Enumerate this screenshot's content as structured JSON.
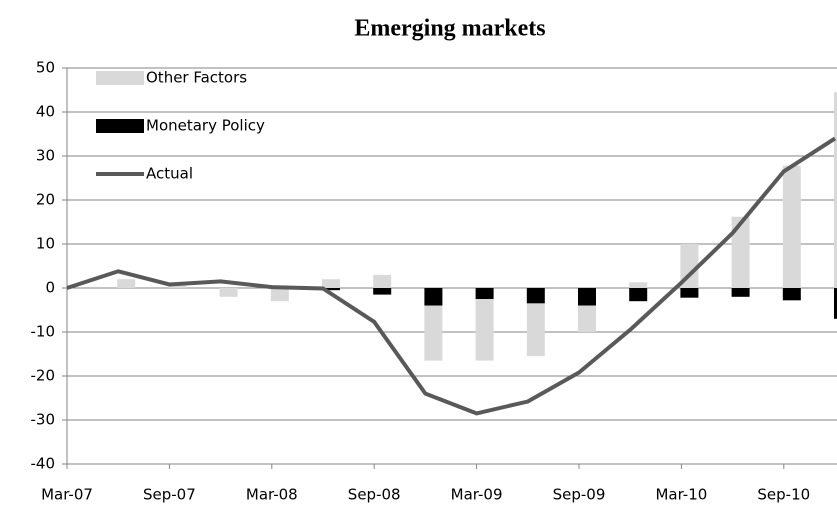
{
  "chart_data": {
    "type": "bar",
    "title": "Emerging markets",
    "categories": [
      "Mar-07",
      null,
      "Sep-07",
      null,
      "Mar-08",
      null,
      "Sep-08",
      null,
      "Mar-09",
      null,
      "Sep-09",
      null,
      "Mar-10",
      null,
      "Sep-10",
      null
    ],
    "series": [
      {
        "name": "Other Factors",
        "color": "#d9d9d9",
        "values": [
          0,
          2,
          0.5,
          -2,
          -3,
          2,
          3,
          -12.5,
          -14,
          -12,
          -6,
          1.3,
          10,
          16.2,
          27.8,
          44.5
        ]
      },
      {
        "name": "Monetary Policy",
        "color": "#000000",
        "values": [
          0,
          0,
          0,
          0,
          0,
          -0.5,
          -1.5,
          -4,
          -2.5,
          -3.5,
          -4,
          -3,
          -2.2,
          -2,
          -2.8,
          -7
        ]
      },
      {
        "name": "Actual",
        "color": "#595959",
        "type": "line",
        "values": [
          0,
          3.8,
          0.8,
          1.5,
          0.2,
          -0.1,
          -7.7,
          -24,
          -28.5,
          -25.8,
          -19.2,
          -9.5,
          1.2,
          12.5,
          26.5,
          34
        ]
      }
    ],
    "ylim": [
      -40,
      50
    ],
    "yticks": [
      -40,
      -30,
      -20,
      -10,
      0,
      10,
      20,
      30,
      40,
      50
    ],
    "grid": true,
    "legend": "upper left"
  }
}
